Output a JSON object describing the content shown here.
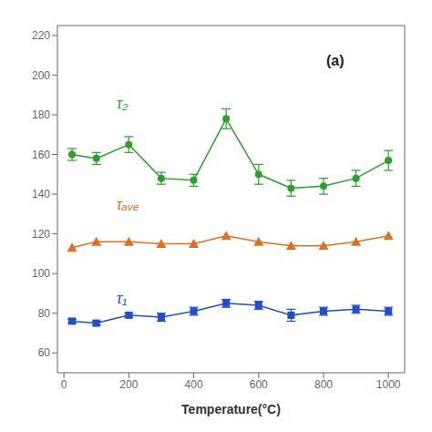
{
  "chart_data": {
    "type": "line",
    "xlabel": "Temperature(°C)",
    "annotations": [
      "(a)"
    ],
    "xlim": [
      -20,
      1050
    ],
    "ylim": [
      50,
      225
    ],
    "xticks": [
      0,
      200,
      400,
      600,
      800,
      1000
    ],
    "yticks": [
      60,
      80,
      100,
      120,
      140,
      160,
      180,
      200,
      220
    ],
    "grid": false,
    "series": [
      {
        "name": "τ₂",
        "color": "#2ca02c",
        "marker": "circle",
        "x": [
          25,
          100,
          200,
          300,
          400,
          500,
          600,
          700,
          800,
          900,
          1000
        ],
        "values": [
          160,
          158,
          165,
          148,
          147,
          178,
          150,
          143,
          144,
          148,
          157
        ],
        "error": [
          3,
          3,
          4,
          3,
          3,
          5,
          5,
          4,
          4,
          4,
          5
        ]
      },
      {
        "name": "τₐᵥₑ",
        "color": "#e07020",
        "marker": "triangle",
        "x": [
          25,
          100,
          200,
          300,
          400,
          500,
          600,
          700,
          800,
          900,
          1000
        ],
        "values": [
          113,
          116,
          116,
          115,
          115,
          119,
          116,
          114,
          114,
          116,
          119
        ],
        "error": [
          0,
          0,
          0,
          0,
          0,
          0,
          0,
          0,
          0,
          0,
          0
        ]
      },
      {
        "name": "τ₁",
        "color": "#1f4fcc",
        "marker": "square",
        "x": [
          25,
          100,
          200,
          300,
          400,
          500,
          600,
          700,
          800,
          900,
          1000
        ],
        "values": [
          76,
          75,
          79,
          78,
          81,
          85,
          84,
          79,
          81,
          82,
          81
        ],
        "error": [
          1,
          1,
          1,
          2,
          2,
          2,
          2,
          3,
          2,
          2,
          2
        ]
      }
    ]
  }
}
